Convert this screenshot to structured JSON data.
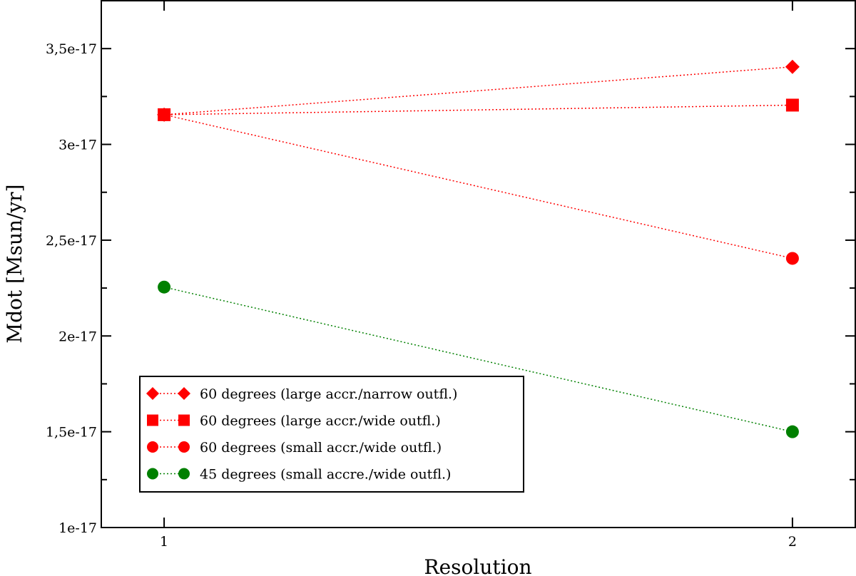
{
  "chart_data": {
    "type": "line",
    "xlabel": "Resolution",
    "ylabel": "Mdot [Msun/yr]",
    "xlim": [
      0.9,
      2.1
    ],
    "ylim": [
      1e-17,
      3.75e-17
    ],
    "x_ticks": [
      {
        "value": 1,
        "label": "1"
      },
      {
        "value": 2,
        "label": "2"
      }
    ],
    "y_ticks": [
      {
        "value": 1e-17,
        "label": "1e-17"
      },
      {
        "value": 1.5e-17,
        "label": "1,5e-17"
      },
      {
        "value": 2e-17,
        "label": "2e-17"
      },
      {
        "value": 2.5e-17,
        "label": "2,5e-17"
      },
      {
        "value": 3e-17,
        "label": "3e-17"
      },
      {
        "value": 3.5e-17,
        "label": "3,5e-17"
      }
    ],
    "y_minor_ticks": [
      1.25e-17,
      1.75e-17,
      2.25e-17,
      2.75e-17,
      3.25e-17
    ],
    "x": [
      1,
      2
    ],
    "series": [
      {
        "name": "60 degrees (large accr./narrow outfl.)",
        "values": [
          3.155e-17,
          3.405e-17
        ],
        "color": "#ff0000",
        "marker": "diamond"
      },
      {
        "name": "60 degrees (large accr./wide outfl.)",
        "values": [
          3.155e-17,
          3.205e-17
        ],
        "color": "#ff0000",
        "marker": "square"
      },
      {
        "name": "60 degrees (small accr./wide outfl.)",
        "values": [
          3.155e-17,
          2.405e-17
        ],
        "color": "#ff0000",
        "marker": "circle"
      },
      {
        "name": "45 degrees (small accre./wide outfl.)",
        "values": [
          2.255e-17,
          1.5e-17
        ],
        "color": "#008000",
        "marker": "circle"
      }
    ],
    "legend_position": "bottom-left",
    "grid": false
  }
}
